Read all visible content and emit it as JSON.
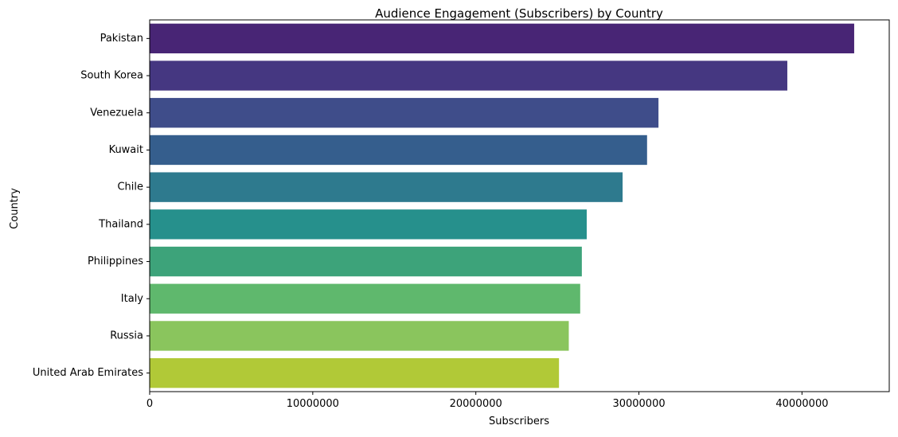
{
  "chart_data": {
    "type": "bar",
    "orientation": "horizontal",
    "title": "Audience Engagement (Subscribers) by Country",
    "xlabel": "Subscribers",
    "ylabel": "Country",
    "categories": [
      "Pakistan",
      "South Korea",
      "Venezuela",
      "Kuwait",
      "Chile",
      "Thailand",
      "Philippines",
      "Italy",
      "Russia",
      "United Arab Emirates"
    ],
    "values": [
      43200000,
      39100000,
      31200000,
      30500000,
      29000000,
      26800000,
      26500000,
      26400000,
      25700000,
      25100000
    ],
    "colors": [
      "#482575",
      "#453781",
      "#3f4d8a",
      "#355e8d",
      "#2e7a8e",
      "#26908c",
      "#3da37a",
      "#5fb86d",
      "#8ac55d",
      "#b1c937"
    ],
    "xlim": [
      0,
      45350000
    ],
    "x_ticks": [
      0,
      10000000,
      20000000,
      30000000,
      40000000
    ],
    "x_tick_labels": [
      "0",
      "10000000",
      "20000000",
      "30000000",
      "40000000"
    ],
    "grid": false,
    "legend": "none"
  }
}
